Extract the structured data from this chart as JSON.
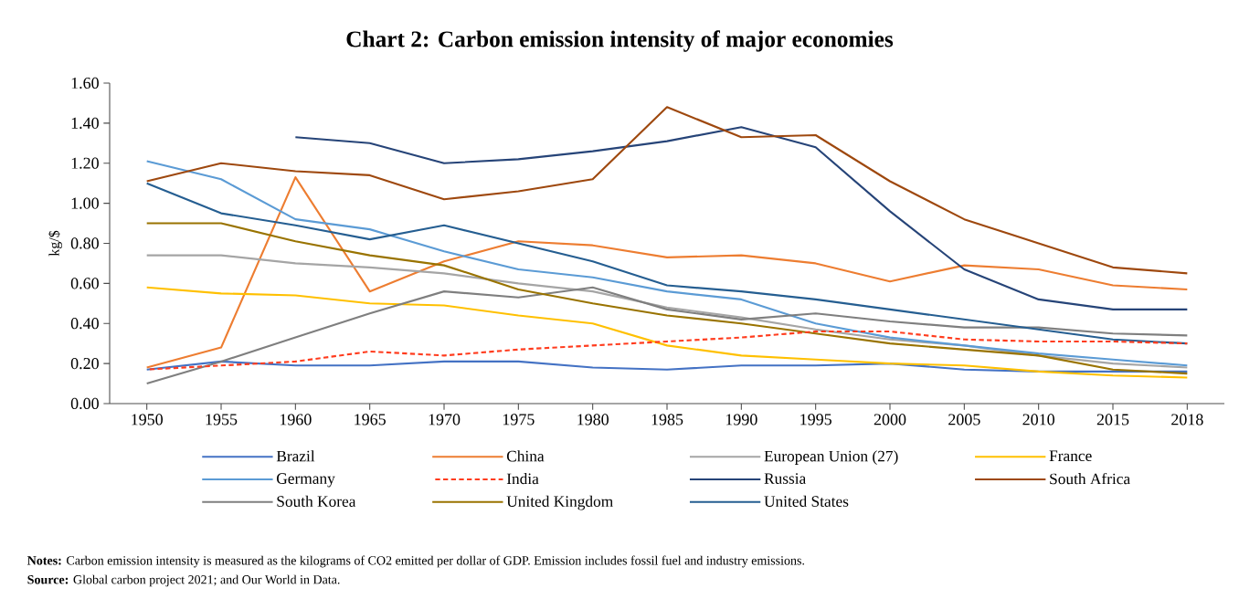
{
  "chart_data": {
    "type": "line",
    "title": "Chart 2: Carbon emission intensity of major economies",
    "ylabel": "kg/$",
    "categories": [
      "1950",
      "1955",
      "1960",
      "1965",
      "1970",
      "1975",
      "1980",
      "1985",
      "1990",
      "1995",
      "2000",
      "2005",
      "2010",
      "2015",
      "2018"
    ],
    "ylim": [
      0,
      1.6
    ],
    "yticks": [
      {
        "value": 0,
        "label": "0.00"
      },
      {
        "value": 0.2,
        "label": "0.20"
      },
      {
        "value": 0.4,
        "label": "0.40"
      },
      {
        "value": 0.6,
        "label": "0.60"
      },
      {
        "value": 0.8,
        "label": "0.80"
      },
      {
        "value": 1.0,
        "label": "1.00"
      },
      {
        "value": 1.2,
        "label": "1.20"
      },
      {
        "value": 1.4,
        "label": "1.40"
      },
      {
        "value": 1.6,
        "label": "1.60"
      }
    ],
    "legend": "bottom",
    "marker": "none",
    "series": [
      {
        "name": "Brazil",
        "color": "#4472c4",
        "values": [
          0.17,
          0.21,
          0.19,
          0.19,
          0.21,
          0.21,
          0.18,
          0.17,
          0.19,
          0.19,
          0.2,
          0.17,
          0.16,
          0.16,
          0.16
        ]
      },
      {
        "name": "China",
        "color": "#ed7d31",
        "values": [
          0.18,
          0.28,
          1.13,
          0.56,
          0.71,
          0.81,
          0.79,
          0.73,
          0.74,
          0.7,
          0.61,
          0.69,
          0.67,
          0.59,
          0.57
        ]
      },
      {
        "name": "European Union (27)",
        "color": "#a5a5a5",
        "values": [
          0.74,
          0.74,
          0.7,
          0.68,
          0.65,
          0.6,
          0.56,
          0.48,
          0.43,
          0.37,
          0.32,
          0.29,
          0.24,
          0.2,
          0.18
        ]
      },
      {
        "name": "France",
        "color": "#ffc000",
        "values": [
          0.58,
          0.55,
          0.54,
          0.5,
          0.49,
          0.44,
          0.4,
          0.29,
          0.24,
          0.22,
          0.2,
          0.19,
          0.16,
          0.14,
          0.13
        ]
      },
      {
        "name": "Germany",
        "color": "#5b9bd5",
        "values": [
          1.21,
          1.12,
          0.92,
          0.87,
          0.76,
          0.67,
          0.63,
          0.56,
          0.52,
          0.4,
          0.33,
          0.29,
          0.25,
          0.22,
          0.19
        ]
      },
      {
        "name": "India",
        "color": "#ff3c1e",
        "line_style": "dashed",
        "values": [
          0.17,
          0.19,
          0.21,
          0.26,
          0.24,
          0.27,
          0.29,
          0.31,
          0.33,
          0.36,
          0.36,
          0.32,
          0.31,
          0.31,
          0.3
        ]
      },
      {
        "name": "Russia",
        "color": "#264478",
        "values": [
          null,
          null,
          1.33,
          1.3,
          1.2,
          1.22,
          1.26,
          1.31,
          1.38,
          1.28,
          0.96,
          0.67,
          0.52,
          0.47,
          0.47
        ]
      },
      {
        "name": "South Africa",
        "color": "#9e480e",
        "values": [
          1.11,
          1.2,
          1.16,
          1.14,
          1.02,
          1.06,
          1.12,
          1.48,
          1.33,
          1.34,
          1.11,
          0.92,
          0.8,
          0.68,
          0.65
        ]
      },
      {
        "name": "South Korea",
        "color": "#7f7f7f",
        "values": [
          0.1,
          0.21,
          0.33,
          0.45,
          0.56,
          0.53,
          0.58,
          0.47,
          0.42,
          0.45,
          0.41,
          0.38,
          0.38,
          0.35,
          0.34
        ]
      },
      {
        "name": "United Kingdom",
        "color": "#997300",
        "values": [
          0.9,
          0.9,
          0.81,
          0.74,
          0.69,
          0.57,
          0.5,
          0.44,
          0.4,
          0.35,
          0.3,
          0.27,
          0.24,
          0.17,
          0.15
        ]
      },
      {
        "name": "United States",
        "color": "#255e91",
        "values": [
          1.1,
          0.95,
          0.89,
          0.82,
          0.89,
          0.8,
          0.71,
          0.59,
          0.56,
          0.52,
          0.47,
          0.42,
          0.37,
          0.32,
          0.3
        ]
      }
    ],
    "annotations": [
      "**Notes:** Carbon emission intensity is measured as the kilograms of CO2 emitted per dollar of GDP. Emission includes fossil fuel and industry emissions.",
      "**Source:** Global carbon project 2021; and Our World in Data."
    ]
  }
}
